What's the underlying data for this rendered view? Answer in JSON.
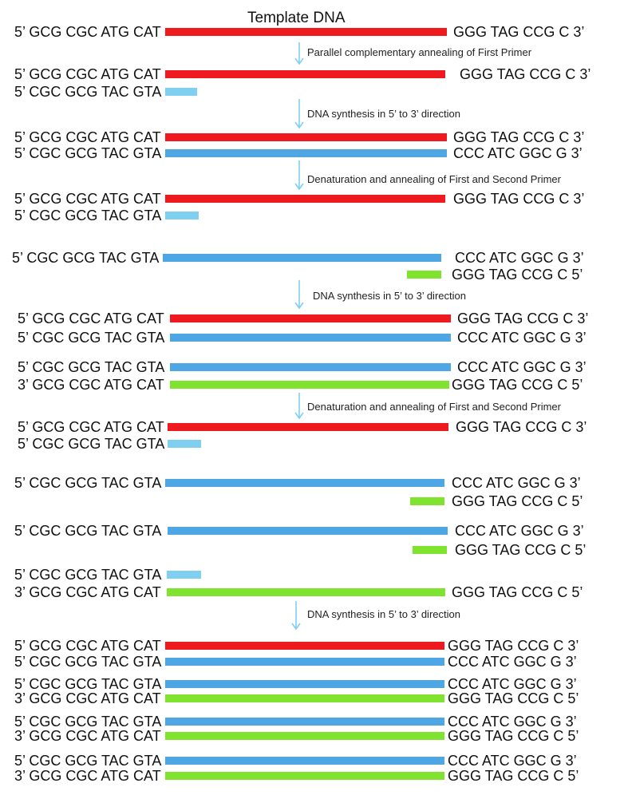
{
  "title": "Template DNA",
  "colors": {
    "template": "#EF1A1F",
    "first_primer": "#4FA6E4",
    "first_primer_short": "#7FD0F0",
    "second_primer": "#7FE330",
    "arrow": "#7FD0F0"
  },
  "sequences": {
    "top_5": "5’ GCG CGC ATG CAT",
    "top_3": "GGG TAG CCG C 3’",
    "first_5": "5’ CGC GCG TAC GTA",
    "first_3": "CCC ATC GGC G 3’",
    "second_3end": "3’ GCG CGC ATG CAT",
    "second_5end": "GGG TAG CCG C 5’"
  },
  "steps": [
    "Parallel complementary annealing of First Primer",
    "DNA synthesis in 5’ to 3’ direction",
    "Denaturation and annealing of First and Second Primer",
    "DNA synthesis in 5’ to 3’ direction",
    "Denaturation and annealing of First and Second Primer",
    "DNA synthesis in 5’ to 3’ direction"
  ]
}
